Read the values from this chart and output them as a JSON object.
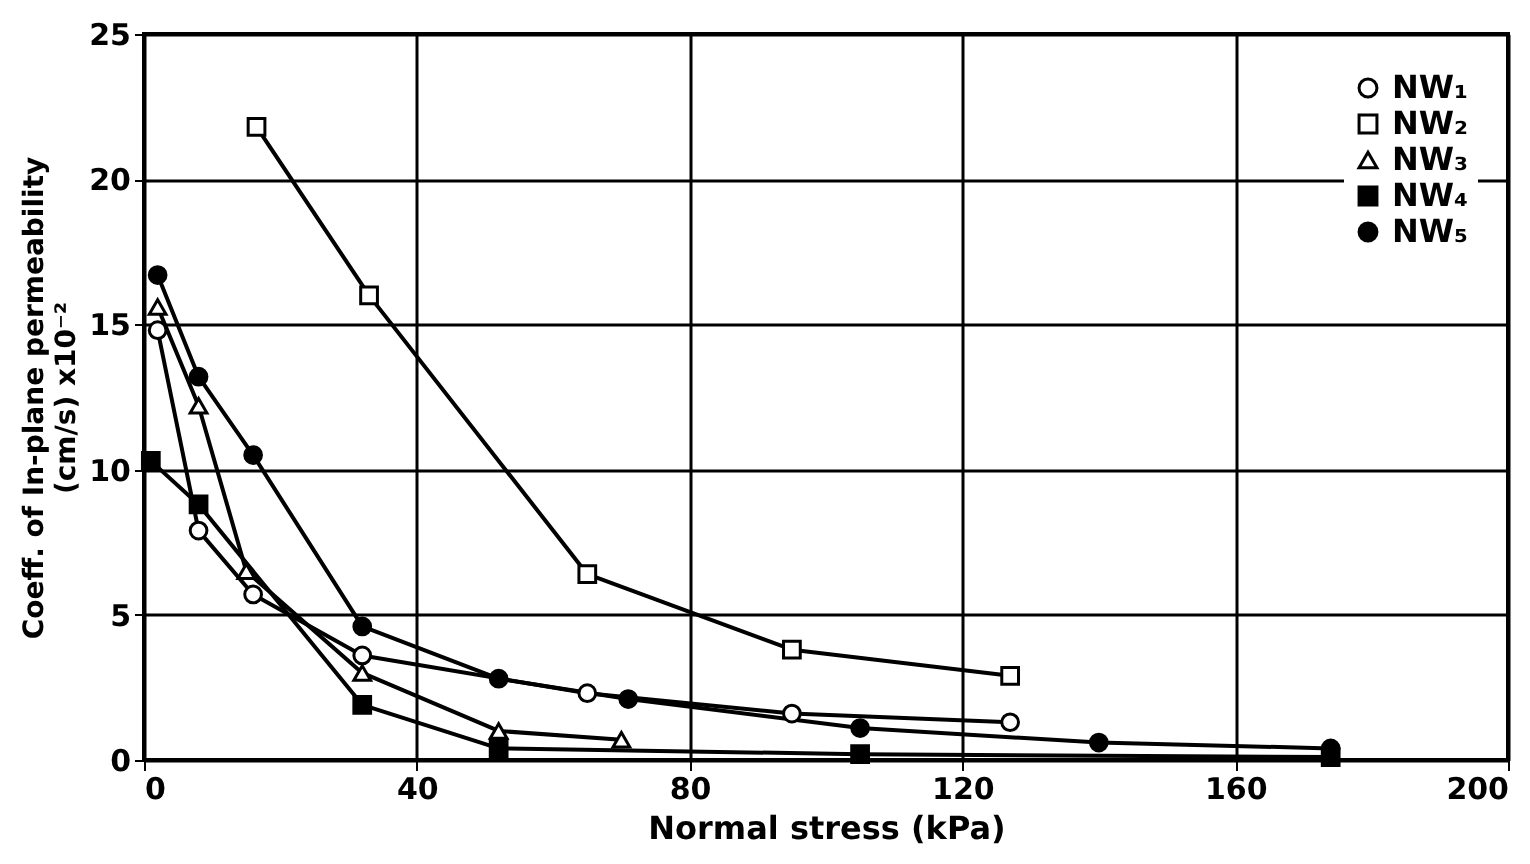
{
  "chart_data": {
    "type": "line",
    "xlabel": "Normal stress (kPa)",
    "ylabel": "Coeff. of In-plane permeability\n(cm/s) x10⁻²",
    "xlim": [
      0,
      200
    ],
    "xticks": [
      0,
      40,
      80,
      120,
      160,
      200
    ],
    "ylim": [
      0,
      25
    ],
    "yticks": [
      0,
      5,
      10,
      15,
      20,
      25
    ],
    "grid": true,
    "legend": "top right",
    "series": [
      {
        "name": "NW₁",
        "color": "#000000",
        "marker": "circle",
        "colors": [
          "#ffffff",
          "#ffffff",
          "#ffffff",
          "#ffffff",
          "#ffffff",
          "#ffffff",
          "#ffffff"
        ],
        "x": [
          2,
          8,
          16,
          32,
          65,
          95,
          127
        ],
        "values": [
          14.8,
          7.9,
          5.7,
          3.6,
          2.3,
          1.6,
          1.3
        ]
      },
      {
        "name": "NW₂",
        "color": "#000000",
        "marker": "square",
        "colors": [
          "#ffffff",
          "#ffffff",
          "#ffffff",
          "#ffffff",
          "#ffffff"
        ],
        "x": [
          16.5,
          33,
          65,
          95,
          127
        ],
        "values": [
          21.8,
          16,
          6.4,
          3.8,
          2.9
        ]
      },
      {
        "name": "NW₃",
        "color": "#000000",
        "marker": "triangle",
        "colors": [
          "#ffffff",
          "#ffffff",
          "#ffffff",
          "#ffffff",
          "#ffffff",
          "#ffffff"
        ],
        "x": [
          2,
          8,
          15,
          32,
          52,
          70
        ],
        "values": [
          15.6,
          12.2,
          6.5,
          3.0,
          1.0,
          0.7
        ]
      },
      {
        "name": "NW₄",
        "color": "#000000",
        "marker": "square",
        "colors": [
          "#000000",
          "#000000",
          "#000000",
          "#000000",
          "#000000",
          "#000000"
        ],
        "x": [
          1,
          8,
          32,
          52,
          105,
          174
        ],
        "values": [
          10.3,
          8.8,
          1.9,
          0.4,
          0.2,
          0.1
        ]
      },
      {
        "name": "NW₅",
        "color": "#000000",
        "marker": "circle",
        "colors": [
          "#000000",
          "#000000",
          "#000000",
          "#000000",
          "#000000",
          "#000000",
          "#000000",
          "#000000",
          "#000000"
        ],
        "x": [
          2,
          8,
          16,
          32,
          52,
          71,
          105,
          140,
          174
        ],
        "values": [
          16.7,
          13.2,
          10.5,
          4.6,
          2.8,
          2.1,
          1.1,
          0.6,
          0.4
        ]
      }
    ]
  }
}
